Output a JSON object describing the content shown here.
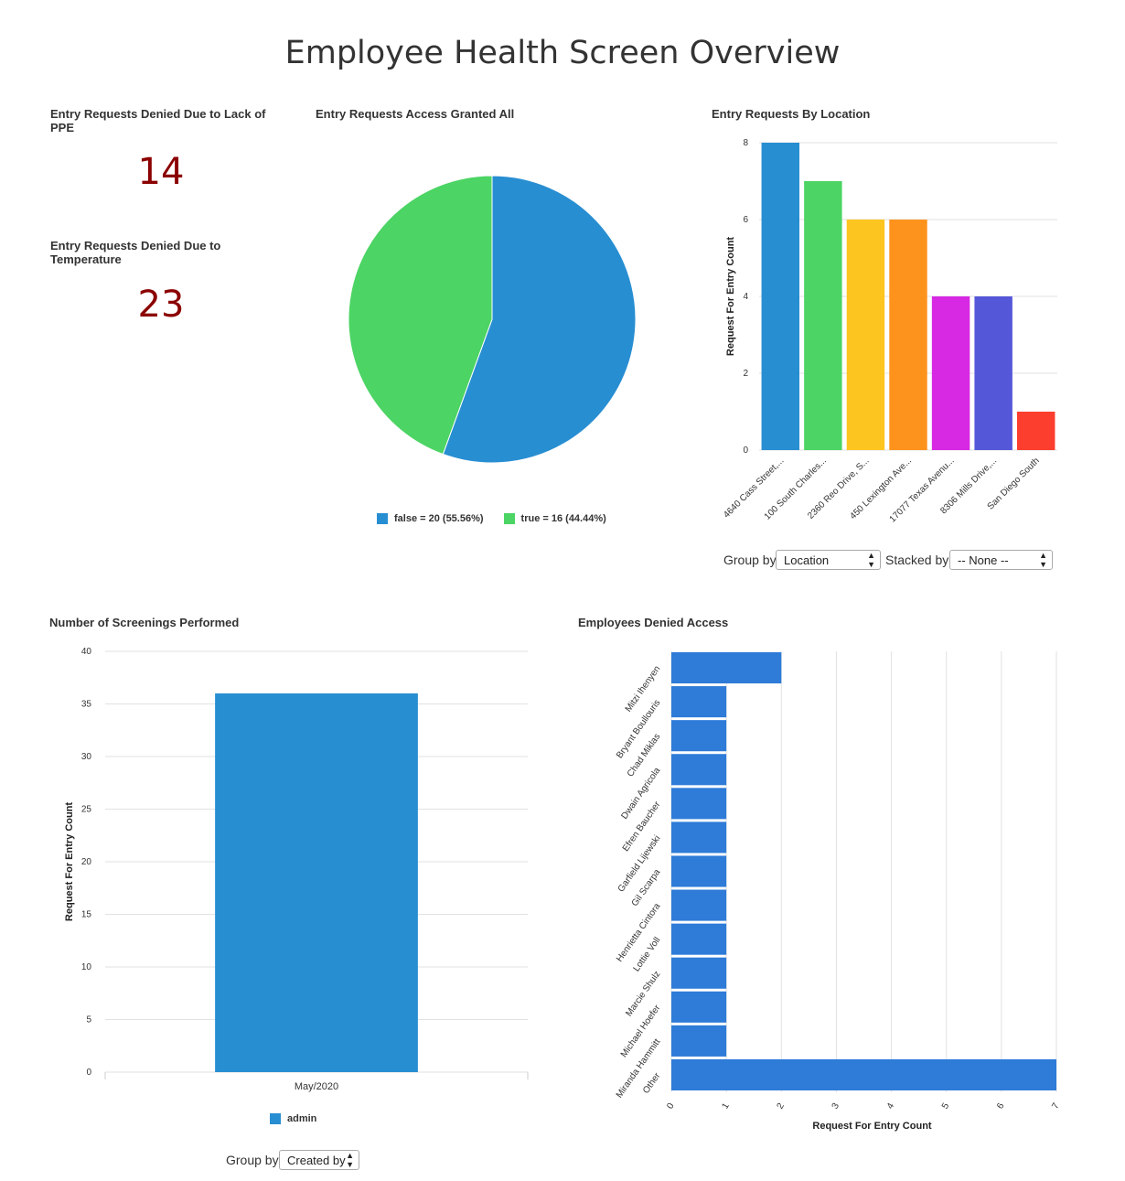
{
  "page_title": "Employee Health Screen Overview",
  "widgets": {
    "ppe": {
      "title": "Entry Requests Denied Due to Lack of PPE",
      "value": "14"
    },
    "temperature": {
      "title": "Entry Requests Denied Due to Temperature",
      "value": "23"
    }
  },
  "pie_chart": {
    "title": "Entry Requests Access Granted All",
    "legend": [
      {
        "label": "false = 20 (55.56%)",
        "color": "#288ed2"
      },
      {
        "label": "true = 16 (44.44%)",
        "color": "#4cd464"
      }
    ]
  },
  "location_chart": {
    "title": "Entry Requests By Location",
    "ylabel": "Request For Entry Count",
    "controls": {
      "group_by_label": "Group by",
      "group_by_value": "Location",
      "stacked_by_label": "Stacked by",
      "stacked_by_value": "-- None --"
    }
  },
  "screenings_chart": {
    "title": "Number of Screenings Performed",
    "ylabel": "Request For Entry Count",
    "legend_label": "admin",
    "controls": {
      "group_by_label": "Group by",
      "group_by_value": "Created by"
    }
  },
  "denied_chart": {
    "title": "Employees Denied Access",
    "xlabel": "Request For Entry Count"
  },
  "chart_data": [
    {
      "type": "pie",
      "title": "Entry Requests Access Granted All",
      "categories": [
        "false",
        "true"
      ],
      "values": [
        20,
        16
      ],
      "colors": [
        "#288ed2",
        "#4cd464"
      ],
      "legend": "bottom"
    },
    {
      "type": "bar",
      "title": "Entry Requests By Location",
      "categories": [
        "4640 Cass Street,...",
        "100 South Charles...",
        "2360 Reo Drive, S...",
        "450 Lexington Ave...",
        "17077 Texas Avenu...",
        "8306 Mills Drive,...",
        "San Diego South"
      ],
      "values": [
        8,
        7,
        6,
        6,
        4,
        4,
        1
      ],
      "colors": [
        "#288ed2",
        "#4cd464",
        "#fdc520",
        "#fd931d",
        "#d728e3",
        "#5557d9",
        "#fb3e2d"
      ],
      "ylabel": "Request For Entry Count",
      "ylim": [
        0,
        8
      ],
      "yticks": [
        0,
        2,
        4,
        6,
        8
      ],
      "grid": true
    },
    {
      "type": "bar",
      "title": "Number of Screenings Performed",
      "categories": [
        "May/2020"
      ],
      "series": [
        {
          "name": "admin",
          "values": [
            36
          ]
        }
      ],
      "color": "#288ed2",
      "ylabel": "Request For Entry Count",
      "ylim": [
        0,
        40
      ],
      "yticks": [
        0,
        5,
        10,
        15,
        20,
        25,
        30,
        35,
        40
      ],
      "grid": true,
      "legend": "bottom"
    },
    {
      "type": "bar",
      "orientation": "horizontal",
      "title": "Employees Denied Access",
      "categories": [
        "Mitzi Ihenyen",
        "Bryant Boullouris",
        "Chad Miklas",
        "Dwain Agricola",
        "Efren Baucher",
        "Garfield Lijewski",
        "Gil Scarpa",
        "Henrietta Cintora",
        "Lottie Voll",
        "Marcie Shulz",
        "Michael Hoefer",
        "Miranda Hammitt",
        "Other"
      ],
      "values": [
        2,
        1,
        1,
        1,
        1,
        1,
        1,
        1,
        1,
        1,
        1,
        1,
        7
      ],
      "color": "#2e7bd8",
      "xlabel": "Request For Entry Count",
      "xlim": [
        0,
        7
      ],
      "xticks": [
        0,
        1,
        2,
        3,
        4,
        5,
        6,
        7
      ],
      "grid": true
    }
  ]
}
